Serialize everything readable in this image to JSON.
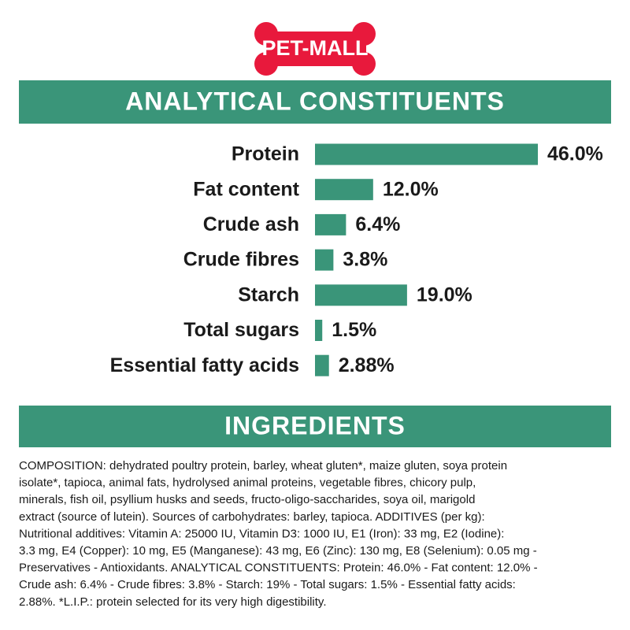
{
  "logo": "PET-MALL",
  "chart_data": {
    "type": "bar",
    "orientation": "horizontal",
    "title": "ANALYTICAL CONSTITUENTS",
    "categories": [
      "Protein",
      "Fat content",
      "Crude ash",
      "Crude fibres",
      "Starch",
      "Total sugars",
      "Essential fatty acids"
    ],
    "values": [
      46.0,
      12.0,
      6.4,
      3.8,
      19.0,
      1.5,
      2.88
    ],
    "value_labels": [
      "46.0%",
      "12.0%",
      "6.4%",
      "3.8%",
      "19.0%",
      "1.5%",
      "2.88%"
    ],
    "color": "#3a9579"
  },
  "ingredients": {
    "title": "INGREDIENTS",
    "lines": [
      "COMPOSITION: dehydrated poultry protein, barley, wheat gluten*, maize gluten, soya protein",
      "isolate*, tapioca, animal fats, hydrolysed animal proteins, vegetable fibres, chicory pulp,",
      "minerals, fish oil, psyllium husks and seeds, fructo-oligo-saccharides, soya oil, marigold",
      "extract (source of lutein). Sources of carbohydrates: barley, tapioca. ADDITIVES (per kg):",
      "Nutritional additives: Vitamin A: 25000 IU, Vitamin D3: 1000 IU, E1 (Iron): 33 mg, E2 (Iodine):",
      "3.3 mg, E4 (Copper): 10 mg, E5 (Manganese): 43 mg, E6 (Zinc): 130 mg, E8 (Selenium): 0.05 mg -",
      "Preservatives - Antioxidants. ANALYTICAL CONSTITUENTS: Protein: 46.0% - Fat content: 12.0% -",
      "Crude ash: 6.4% - Crude fibres: 3.8% - Starch: 19% - Total sugars: 1.5% - Essential fatty acids:",
      "2.88%. *L.I.P.: protein selected for its very high digestibility."
    ]
  }
}
